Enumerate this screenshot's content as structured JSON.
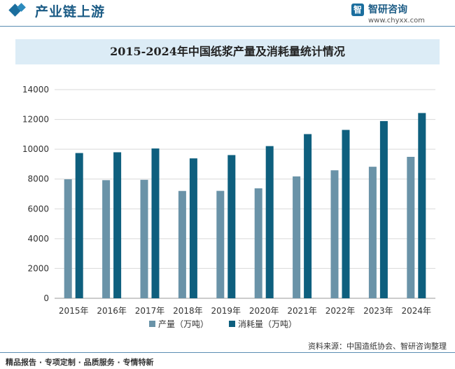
{
  "header": {
    "title": "产业链上游",
    "brand_name": "智研咨询",
    "brand_url": "www.chyxx.com"
  },
  "footer": {
    "tagline": "精品报告 · 专项定制 · 品质服务 · 专情特新",
    "source": "资料来源：中国造纸协会、智研咨询整理"
  },
  "colors": {
    "production": "#6a93a8",
    "consumption": "#0e5f7e",
    "accent": "#1b5b85"
  },
  "chart_data": {
    "type": "bar",
    "title": "2015-2024年中国纸浆产量及消耗量统计情况",
    "categories": [
      "2015年",
      "2016年",
      "2017年",
      "2018年",
      "2019年",
      "2020年",
      "2021年",
      "2022年",
      "2023年",
      "2024年"
    ],
    "series": [
      {
        "name": "产量（万吨）",
        "values": [
          7984,
          7925,
          7949,
          7201,
          7207,
          7378,
          8177,
          8587,
          8826,
          9490
        ]
      },
      {
        "name": "消耗量（万吨）",
        "values": [
          9746,
          9797,
          10051,
          9387,
          9609,
          10211,
          11016,
          11297,
          11890,
          12430
        ]
      }
    ],
    "ylim": [
      0,
      14000
    ],
    "yticks": [
      0,
      2000,
      4000,
      6000,
      8000,
      10000,
      12000,
      14000
    ],
    "grid": true,
    "legend": "bottom"
  }
}
